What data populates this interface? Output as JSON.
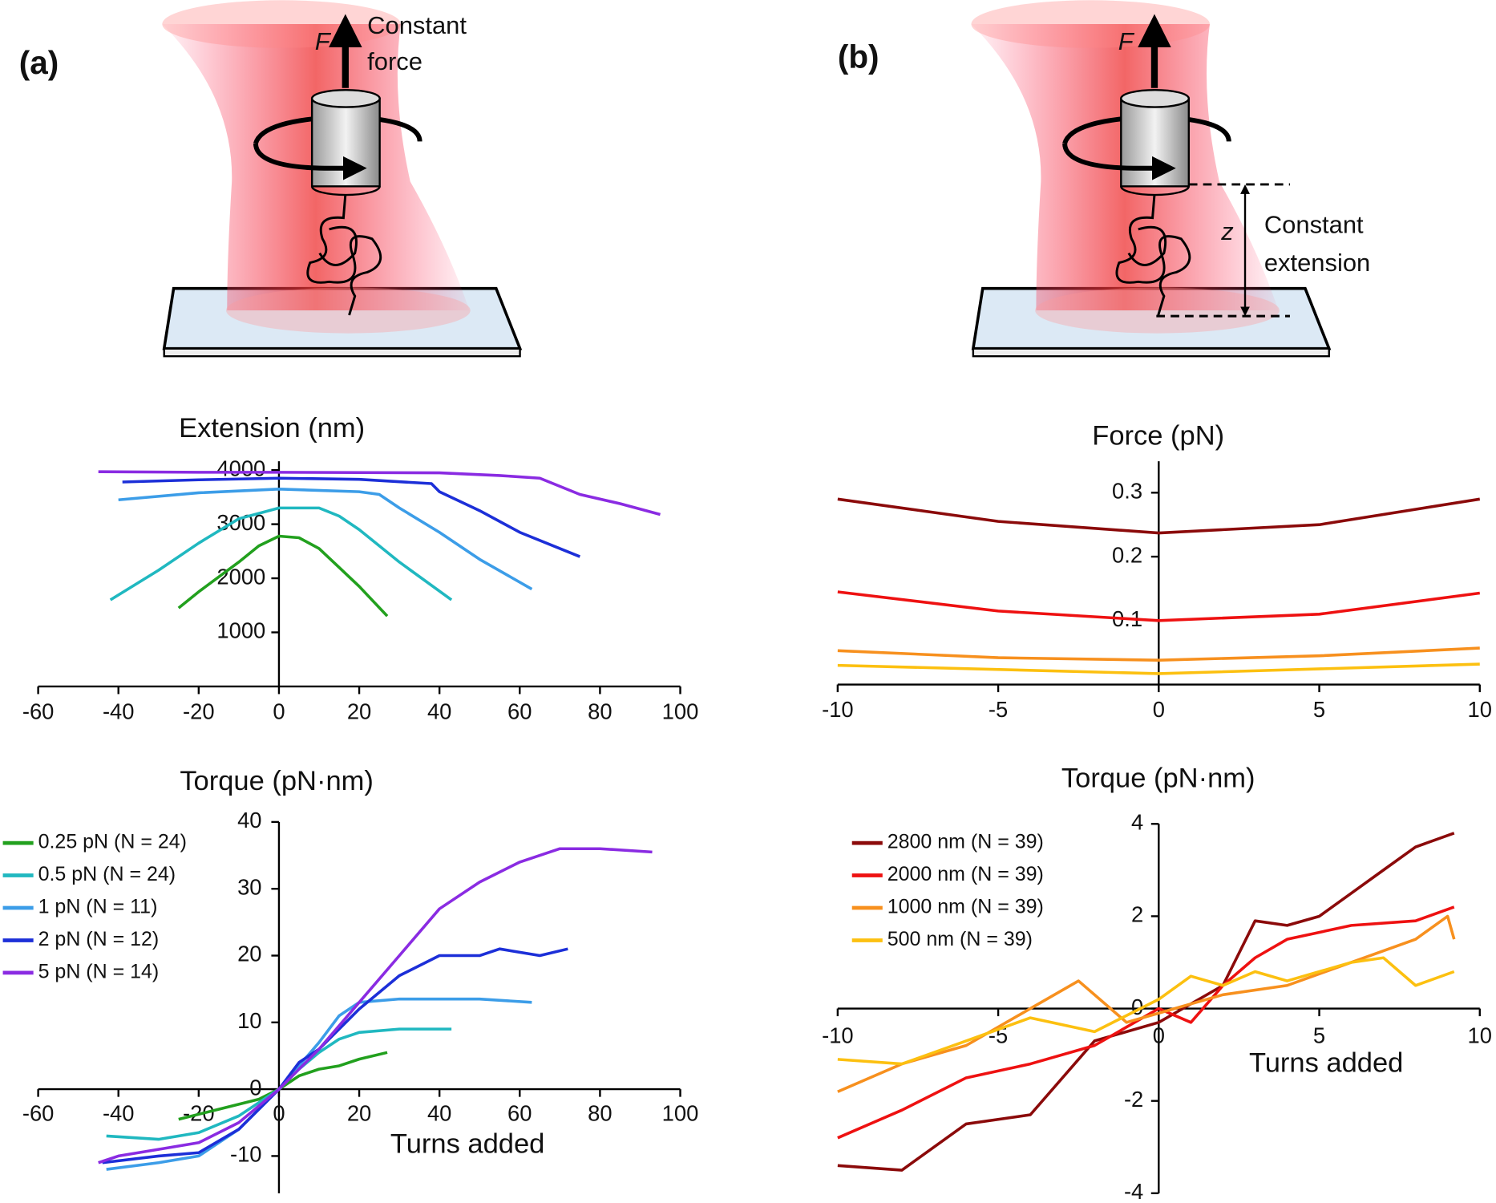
{
  "diagram": {
    "a": {
      "label": "(a)",
      "force_symbol": "F",
      "caption_lines": [
        "Constant",
        "force"
      ]
    },
    "b": {
      "label": "(b)",
      "force_symbol": "F",
      "extension_symbol": "z",
      "caption_lines": [
        "Constant",
        "extension"
      ]
    }
  },
  "chart_data": [
    {
      "type": "line",
      "title": "Extension (nm)",
      "xlim": [
        -60,
        100
      ],
      "xticks": [
        -60,
        -40,
        -20,
        0,
        20,
        40,
        60,
        80,
        100
      ],
      "ylim": [
        0,
        4200
      ],
      "yticks": [
        1000,
        2000,
        3000,
        4000
      ],
      "series": [
        {
          "color": "#22a01e",
          "x": [
            -25,
            -20,
            -10,
            -5,
            0,
            5,
            10,
            15,
            20,
            27
          ],
          "values": [
            1450,
            1750,
            2300,
            2600,
            2780,
            2750,
            2550,
            2200,
            1850,
            1300
          ]
        },
        {
          "color": "#20b8c0",
          "x": [
            -42,
            -30,
            -20,
            -10,
            0,
            10,
            15,
            20,
            30,
            43
          ],
          "values": [
            1600,
            2150,
            2650,
            3100,
            3300,
            3300,
            3150,
            2900,
            2300,
            1600
          ]
        },
        {
          "color": "#3c9de8",
          "x": [
            -40,
            -20,
            0,
            20,
            25,
            30,
            40,
            50,
            63
          ],
          "values": [
            3450,
            3580,
            3650,
            3600,
            3550,
            3300,
            2850,
            2350,
            1800
          ]
        },
        {
          "color": "#1c2fd8",
          "x": [
            -39,
            -20,
            0,
            20,
            38,
            40,
            50,
            60,
            75
          ],
          "values": [
            3780,
            3820,
            3850,
            3830,
            3750,
            3600,
            3250,
            2850,
            2400
          ]
        },
        {
          "color": "#8a2be2",
          "x": [
            -45,
            -20,
            0,
            40,
            55,
            65,
            75,
            85,
            95
          ],
          "values": [
            3970,
            3960,
            3960,
            3950,
            3900,
            3850,
            3550,
            3380,
            3180
          ]
        }
      ]
    },
    {
      "type": "line",
      "title": "Force (pN)",
      "xlim": [
        -10,
        10
      ],
      "xticks": [
        -10,
        -5,
        0,
        5,
        10
      ],
      "ylim": [
        0,
        0.35
      ],
      "yticks": [
        0.1,
        0.2,
        0.3
      ],
      "series": [
        {
          "color": "#8b0a0a",
          "x": [
            -10,
            -5,
            0,
            5,
            10
          ],
          "values": [
            0.29,
            0.255,
            0.237,
            0.25,
            0.29
          ]
        },
        {
          "color": "#ee1111",
          "x": [
            -10,
            -5,
            0,
            5,
            10
          ],
          "values": [
            0.145,
            0.115,
            0.1,
            0.11,
            0.143
          ]
        },
        {
          "color": "#f7901e",
          "x": [
            -10,
            -5,
            0,
            5,
            10
          ],
          "values": [
            0.053,
            0.042,
            0.038,
            0.045,
            0.057
          ]
        },
        {
          "color": "#fcc010",
          "x": [
            -10,
            0,
            10
          ],
          "values": [
            0.03,
            0.017,
            0.032
          ]
        }
      ]
    },
    {
      "type": "line",
      "title": "Torque (pN·nm)",
      "xlabel": "Turns added",
      "legend": "upper left",
      "xlim": [
        -60,
        100
      ],
      "xticks": [
        -60,
        -40,
        -20,
        0,
        20,
        40,
        60,
        80,
        100
      ],
      "ylim": [
        -15,
        40
      ],
      "yticks": [
        -10,
        0,
        10,
        20,
        30,
        40
      ],
      "series": [
        {
          "name": "0.25 pN (N = 24)",
          "color": "#22a01e",
          "x": [
            -25,
            -15,
            -5,
            0,
            5,
            10,
            15,
            20,
            27
          ],
          "values": [
            -4.5,
            -3,
            -1.5,
            0,
            2,
            3,
            3.5,
            4.5,
            5.5
          ]
        },
        {
          "name": "0.5 pN (N = 24)",
          "color": "#20b8c0",
          "x": [
            -43,
            -30,
            -20,
            -10,
            0,
            5,
            10,
            15,
            20,
            30,
            43
          ],
          "values": [
            -7,
            -7.5,
            -6.5,
            -4,
            0,
            3,
            5.5,
            7.5,
            8.5,
            9,
            9
          ]
        },
        {
          "name": "1 pN (N = 11)",
          "color": "#3c9de8",
          "x": [
            -43,
            -30,
            -20,
            -10,
            0,
            5,
            10,
            15,
            20,
            30,
            40,
            50,
            63
          ],
          "values": [
            -12,
            -11,
            -10,
            -6,
            0,
            3.5,
            7,
            11,
            13,
            13.5,
            13.5,
            13.5,
            13
          ]
        },
        {
          "name": "2 pN (N = 12)",
          "color": "#1c2fd8",
          "x": [
            -44,
            -30,
            -20,
            -10,
            0,
            5,
            10,
            20,
            30,
            40,
            50,
            55,
            65,
            72
          ],
          "values": [
            -11,
            -10,
            -9.5,
            -6,
            0,
            4,
            6,
            12,
            17,
            20,
            20,
            21,
            20,
            21
          ]
        },
        {
          "name": "5 pN (N = 14)",
          "color": "#8a2be2",
          "x": [
            -45,
            -40,
            -30,
            -20,
            -10,
            0,
            10,
            20,
            30,
            40,
            50,
            60,
            70,
            80,
            93
          ],
          "values": [
            -11,
            -10,
            -9,
            -8,
            -5,
            0,
            6,
            13,
            20,
            27,
            31,
            34,
            36,
            36,
            35.5
          ]
        }
      ]
    },
    {
      "type": "line",
      "title": "Torque (pN·nm)",
      "xlabel": "Turns added",
      "legend": "upper left",
      "xlim": [
        -10,
        10
      ],
      "xticks": [
        -10,
        -5,
        0,
        5,
        10
      ],
      "ylim": [
        -4,
        4
      ],
      "yticks": [
        -4,
        -2,
        0,
        2,
        4
      ],
      "series": [
        {
          "name": "2800 nm (N = 39)",
          "color": "#8b0a0a",
          "x": [
            -10,
            -8,
            -6,
            -4,
            -2,
            0,
            2,
            3,
            4,
            5,
            6,
            7,
            8,
            9.2
          ],
          "values": [
            -3.4,
            -3.5,
            -2.5,
            -2.3,
            -0.7,
            -0.3,
            0.5,
            1.9,
            1.8,
            2,
            2.5,
            3,
            3.5,
            3.8
          ]
        },
        {
          "name": "2000 nm (N = 39)",
          "color": "#ee1111",
          "x": [
            -10,
            -8,
            -6,
            -4,
            -2,
            0,
            1,
            2,
            3,
            4,
            6,
            8,
            9.2
          ],
          "values": [
            -2.8,
            -2.2,
            -1.5,
            -1.2,
            -0.8,
            0,
            -0.3,
            0.5,
            1.1,
            1.5,
            1.8,
            1.9,
            2.2
          ]
        },
        {
          "name": "1000 nm (N = 39)",
          "color": "#f7901e",
          "x": [
            -10,
            -8,
            -6,
            -4,
            -2.5,
            -1,
            0,
            2,
            4,
            6,
            8,
            9,
            9.2
          ],
          "values": [
            -1.8,
            -1.2,
            -0.8,
            0,
            0.6,
            -0.3,
            -0.1,
            0.3,
            0.5,
            1,
            1.5,
            2,
            1.5
          ]
        },
        {
          "name": "500 nm (N = 39)",
          "color": "#fcc010",
          "x": [
            -10,
            -8,
            -6,
            -4,
            -2,
            0,
            1,
            2,
            3,
            4,
            6,
            7,
            8,
            9.2
          ],
          "values": [
            -1.1,
            -1.2,
            -0.7,
            -0.2,
            -0.5,
            0.2,
            0.7,
            0.5,
            0.8,
            0.6,
            1,
            1.1,
            0.5,
            0.8
          ]
        }
      ]
    }
  ]
}
